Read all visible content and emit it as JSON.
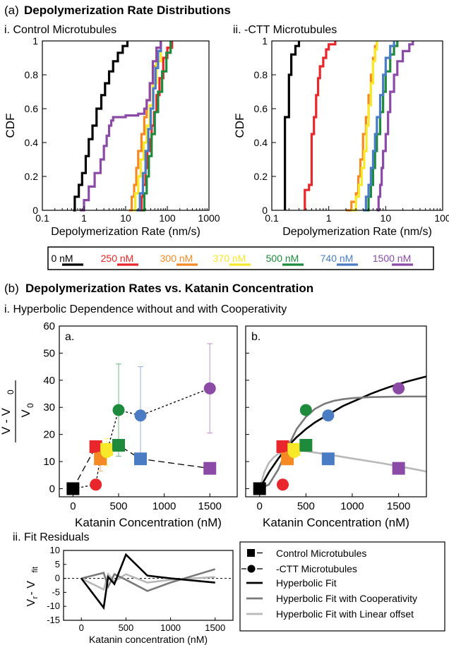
{
  "colors": {
    "0": "#000000",
    "250": "#e8262b",
    "300": "#f58a24",
    "370": "#f7e82a",
    "500": "#1e8a3c",
    "740": "#4a7cc4",
    "1500": "#8a4aa6",
    "fit_hyper": "#000000",
    "fit_coop": "#7a7a7a",
    "fit_linear": "#b8b8b8"
  },
  "headers": {
    "a_label": "(a)",
    "a_title": "Depolymerization Rate Distributions",
    "a_i": "i. Control Microtubules",
    "a_ii": "ii. -CTT Microtubules",
    "b_label": "(b)",
    "b_title": "Depolymerization Rates vs. Katanin Concentration",
    "b_i": "i. Hyperbolic Dependence without and with Cooperativity",
    "b_ii": "ii. Fit Residuals",
    "panel_a": "a.",
    "panel_b": "b."
  },
  "legend_conc": [
    "0 nM",
    "250 nM",
    "300 nM",
    "370 nM",
    "500 nM",
    "740 nM",
    "1500 nM"
  ],
  "legend_fit": {
    "control": "Control Microtubules",
    "ctt": "-CTT Microtubules",
    "hyper": "Hyperbolic Fit",
    "coop": "Hyperbolic Fit with Cooperativity",
    "linear": "Hyperbolic Fit with Linear offset"
  },
  "chart_data": [
    {
      "type": "line",
      "ylabel": "CDF",
      "xlabel": "Depolymerization Rate (nm/s)",
      "xscale": "log",
      "xlim": [
        0.1,
        1000
      ],
      "ylim": [
        0,
        1
      ],
      "xticks": [
        "0.1",
        "1",
        "10",
        "100",
        "1000"
      ],
      "yticks": [
        "0",
        "0.2",
        "0.4",
        "0.6",
        "0.8",
        "1"
      ],
      "series": [
        {
          "name": "0 nM",
          "x": [
            0.55,
            0.6,
            0.75,
            0.9,
            1.1,
            1.3,
            1.6,
            2,
            2.6,
            3.2,
            4,
            5,
            6.5,
            8.5,
            11
          ],
          "y": [
            0,
            0.08,
            0.15,
            0.22,
            0.32,
            0.42,
            0.5,
            0.6,
            0.68,
            0.75,
            0.82,
            0.88,
            0.93,
            0.97,
            1
          ]
        },
        {
          "name": "250 nM",
          "x": [
            20,
            24,
            26,
            30,
            33,
            38,
            42,
            48,
            55,
            65,
            80,
            100,
            130
          ],
          "y": [
            0,
            0.08,
            0.15,
            0.25,
            0.35,
            0.42,
            0.5,
            0.58,
            0.68,
            0.78,
            0.9,
            0.96,
            1
          ]
        },
        {
          "name": "300 nM",
          "x": [
            12,
            14,
            16,
            18,
            20,
            24,
            28,
            32,
            38,
            45,
            55,
            70
          ],
          "y": [
            0,
            0.08,
            0.15,
            0.25,
            0.35,
            0.45,
            0.55,
            0.65,
            0.75,
            0.85,
            0.94,
            1
          ]
        },
        {
          "name": "370 nM",
          "x": [
            15,
            17,
            20,
            23,
            27,
            32,
            38,
            45,
            55,
            70
          ],
          "y": [
            0,
            0.1,
            0.2,
            0.3,
            0.4,
            0.5,
            0.62,
            0.75,
            0.88,
            1
          ]
        },
        {
          "name": "500 nM",
          "x": [
            25,
            28,
            32,
            36,
            42,
            50,
            60,
            75,
            95,
            120
          ],
          "y": [
            0,
            0.1,
            0.2,
            0.32,
            0.45,
            0.58,
            0.7,
            0.82,
            0.93,
            1
          ]
        },
        {
          "name": "740 nM",
          "x": [
            18,
            22,
            26,
            30,
            35,
            40,
            46,
            52,
            60,
            70
          ],
          "y": [
            0,
            0.1,
            0.22,
            0.35,
            0.48,
            0.6,
            0.72,
            0.84,
            0.94,
            1
          ]
        },
        {
          "name": "1500 nM",
          "x": [
            0.8,
            1,
            1.3,
            1.8,
            2.5,
            3,
            3.5,
            4,
            4.5,
            5,
            10,
            20,
            28,
            32,
            38,
            45,
            55,
            70
          ],
          "y": [
            0,
            0.06,
            0.14,
            0.22,
            0.3,
            0.38,
            0.44,
            0.5,
            0.53,
            0.55,
            0.56,
            0.57,
            0.6,
            0.65,
            0.75,
            0.88,
            0.96,
            1
          ]
        }
      ]
    },
    {
      "type": "line",
      "ylabel": "CDF",
      "xlabel": "Depolymerization Rate (nm/s)",
      "xscale": "log",
      "xlim": [
        0.1,
        100
      ],
      "ylim": [
        0,
        1
      ],
      "xticks": [
        "0.1",
        "1",
        "10",
        "100"
      ],
      "yticks": [
        "0",
        "0.2",
        "0.4",
        "0.6",
        "0.8",
        "1"
      ],
      "series": [
        {
          "name": "0 nM",
          "x": [
            0.17,
            0.17,
            0.17,
            0.2,
            0.2,
            0.2,
            0.22,
            0.22,
            0.26,
            0.26,
            0.3
          ],
          "y": [
            0,
            0.3,
            0.55,
            0.55,
            0.62,
            0.8,
            0.8,
            0.92,
            0.92,
            0.97,
            1
          ]
        },
        {
          "name": "250 nM",
          "x": [
            0.38,
            0.38,
            0.45,
            0.5,
            0.5,
            0.55,
            0.6,
            0.65,
            0.7,
            0.8,
            0.9,
            1,
            1.3
          ],
          "y": [
            0,
            0.12,
            0.15,
            0.25,
            0.45,
            0.55,
            0.68,
            0.78,
            0.85,
            0.9,
            0.95,
            0.98,
            1
          ]
        },
        {
          "name": "300 nM",
          "x": [
            2,
            2.5,
            3,
            3.3,
            3.6,
            4,
            4.5,
            5,
            5.5,
            6,
            6.5,
            7
          ],
          "y": [
            0,
            0.05,
            0.1,
            0.2,
            0.3,
            0.45,
            0.55,
            0.68,
            0.8,
            0.9,
            0.97,
            1
          ]
        },
        {
          "name": "370 nM",
          "x": [
            2.5,
            3,
            3.4,
            3.8,
            4.2,
            4.6,
            5,
            5.5,
            6,
            6.5,
            7
          ],
          "y": [
            0,
            0.08,
            0.15,
            0.25,
            0.35,
            0.5,
            0.62,
            0.75,
            0.88,
            0.95,
            1
          ]
        },
        {
          "name": "500 nM",
          "x": [
            4.5,
            5,
            5.5,
            6,
            6.5,
            7,
            8,
            9,
            10,
            12,
            14,
            16
          ],
          "y": [
            0,
            0.08,
            0.15,
            0.25,
            0.35,
            0.45,
            0.58,
            0.7,
            0.82,
            0.92,
            0.97,
            1
          ]
        },
        {
          "name": "740 nM",
          "x": [
            4,
            4.5,
            5,
            5.5,
            6,
            6.5,
            7,
            8,
            9,
            10,
            12,
            14
          ],
          "y": [
            0,
            0.08,
            0.15,
            0.25,
            0.35,
            0.45,
            0.55,
            0.68,
            0.8,
            0.9,
            0.97,
            1
          ]
        },
        {
          "name": "1500 nM",
          "x": [
            7,
            7.5,
            8,
            8.5,
            9,
            10,
            11,
            12,
            14,
            16,
            20,
            26,
            30
          ],
          "y": [
            0,
            0.08,
            0.15,
            0.25,
            0.35,
            0.45,
            0.58,
            0.7,
            0.8,
            0.88,
            0.94,
            0.98,
            1
          ]
        }
      ]
    },
    {
      "type": "scatter",
      "panel": "a.",
      "xlabel": "Katanin Concentration (nM)",
      "ylabel_num": "V - V",
      "ylabel_num_sub": "0",
      "ylabel_den": "V",
      "ylabel_den_sub": "0",
      "xlim": [
        -150,
        1800
      ],
      "ylim": [
        -3,
        60
      ],
      "xticks": [
        "0",
        "500",
        "1000",
        "1500"
      ],
      "yticks": [
        "0",
        "10",
        "20",
        "30",
        "40",
        "50",
        "60"
      ],
      "control": {
        "x": [
          0,
          250,
          300,
          370,
          500,
          740,
          1500
        ],
        "y": [
          0,
          15.5,
          11,
          14.5,
          16,
          11,
          7.5
        ]
      },
      "ctt": {
        "x": [
          0,
          250,
          300,
          370,
          500,
          740,
          1500
        ],
        "y": [
          0,
          1.5,
          11.5,
          13.5,
          29,
          27,
          37
        ],
        "err": [
          0,
          1.5,
          5,
          5,
          17,
          18,
          16.5
        ]
      }
    },
    {
      "type": "scatter",
      "panel": "b.",
      "xlabel": "Katanin Concentration (nM)",
      "xlim": [
        -150,
        1800
      ],
      "ylim": [
        -3,
        60
      ],
      "xticks": [
        "0",
        "500",
        "1000",
        "1500"
      ],
      "control": {
        "x": [
          0,
          250,
          300,
          370,
          500,
          740,
          1500
        ],
        "y": [
          0,
          15.5,
          11,
          14.5,
          16,
          11,
          7.5
        ]
      },
      "ctt": {
        "x": [
          0,
          250,
          300,
          370,
          500,
          740,
          1500
        ],
        "y": [
          0,
          1.5,
          11.5,
          13.5,
          29,
          27,
          37
        ]
      },
      "fits": {
        "hyper": {
          "x": [
            0,
            100,
            200,
            300,
            400,
            500,
            600,
            700,
            800,
            900,
            1000,
            1100,
            1200,
            1300,
            1400,
            1500,
            1600,
            1700,
            1800
          ],
          "y": [
            0,
            6,
            11,
            15.5,
            19,
            22,
            24.5,
            26.5,
            28.5,
            30.5,
            32,
            33.5,
            35,
            36.3,
            37.5,
            38.6,
            39.6,
            40.5,
            41.4
          ]
        },
        "coop": {
          "x": [
            0,
            100,
            200,
            300,
            400,
            500,
            600,
            700,
            800,
            900,
            1000,
            1200,
            1400,
            1600,
            1800
          ],
          "y": [
            0,
            1.5,
            7,
            15,
            22,
            26.5,
            29.5,
            31.3,
            32.4,
            33,
            33.4,
            33.8,
            33.9,
            34,
            34
          ]
        },
        "linear": {
          "x": [
            0,
            50,
            100,
            150,
            200,
            250,
            300,
            370,
            500,
            740,
            900,
            1100,
            1300,
            1500,
            1700,
            1800
          ],
          "y": [
            0,
            6,
            9.5,
            11.5,
            12.8,
            13.5,
            14,
            14.2,
            13.8,
            12.6,
            11.7,
            10.6,
            9.5,
            8.3,
            7,
            6.3
          ]
        }
      }
    },
    {
      "type": "line",
      "panel": "ii. Fit Residuals",
      "xlabel": "Katanin concentration (nM)",
      "ylabel": "V",
      "ylabel_sub_r": "r",
      "ylabel_mid": " - V",
      "ylabel_sub_fit": "fit",
      "xlim": [
        -200,
        1700
      ],
      "ylim": [
        -15,
        10
      ],
      "xticks": [
        "0",
        "500",
        "1000",
        "1500"
      ],
      "yticks": [
        "10",
        "5",
        "0",
        "-5",
        "-10",
        "-15"
      ],
      "series": [
        {
          "name": "Hyperbolic Fit",
          "x": [
            0,
            250,
            300,
            370,
            500,
            740,
            1000,
            1500
          ],
          "y": [
            0,
            -10.5,
            0.5,
            -2,
            8.5,
            1,
            0,
            -1.5
          ]
        },
        {
          "name": "Hyperbolic Fit with Cooperativity",
          "x": [
            0,
            250,
            300,
            370,
            500,
            740,
            1000,
            1500
          ],
          "y": [
            0,
            2,
            -3,
            1.5,
            -0.5,
            -4.5,
            -1.5,
            3.3
          ]
        },
        {
          "name": "Hyperbolic Fit with Linear offset",
          "x": [
            0,
            250,
            300,
            370,
            500,
            740,
            1000,
            1500
          ],
          "y": [
            0,
            -4,
            1.5,
            -1,
            1.5,
            -1.5,
            -0.5,
            0.5
          ]
        }
      ]
    }
  ]
}
